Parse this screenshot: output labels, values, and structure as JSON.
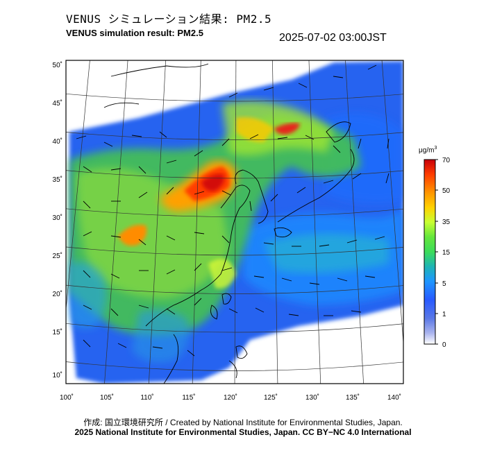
{
  "title_jp": "VENUS シミュレーション結果: PM2.5",
  "title_en": "VENUS simulation result: PM2.5",
  "timestamp": "2025-07-02 03:00JST",
  "lat_labels": [
    "50˚",
    "45˚",
    "40˚",
    "35˚",
    "30˚",
    "25˚",
    "20˚",
    "15˚",
    "10˚"
  ],
  "lon_labels": [
    "100˚",
    "105˚",
    "110˚",
    "115˚",
    "120˚",
    "125˚",
    "130˚",
    "135˚",
    "140˚"
  ],
  "colorbar": {
    "unit": "μg/m",
    "unit_sup": "3",
    "ticks": [
      "70",
      "50",
      "35",
      "15",
      "5",
      "1",
      "0"
    ],
    "colors": [
      "#c8000a",
      "#ff3c00",
      "#ff9600",
      "#ffd200",
      "#e6ff32",
      "#96ff3c",
      "#3cdc3c",
      "#1eb4b4",
      "#1e8cff",
      "#2850ff",
      "#5a6ee6",
      "#8c9be6",
      "#c8d2f0",
      "#ffffff"
    ]
  },
  "credit_line1": "作成: 国立環境研究所 / Created by National Institute for Environmental Studies, Japan.",
  "credit_line2": "2025 National Institute for Environmental Studies, Japan. CC BY−NC 4.0 International"
}
